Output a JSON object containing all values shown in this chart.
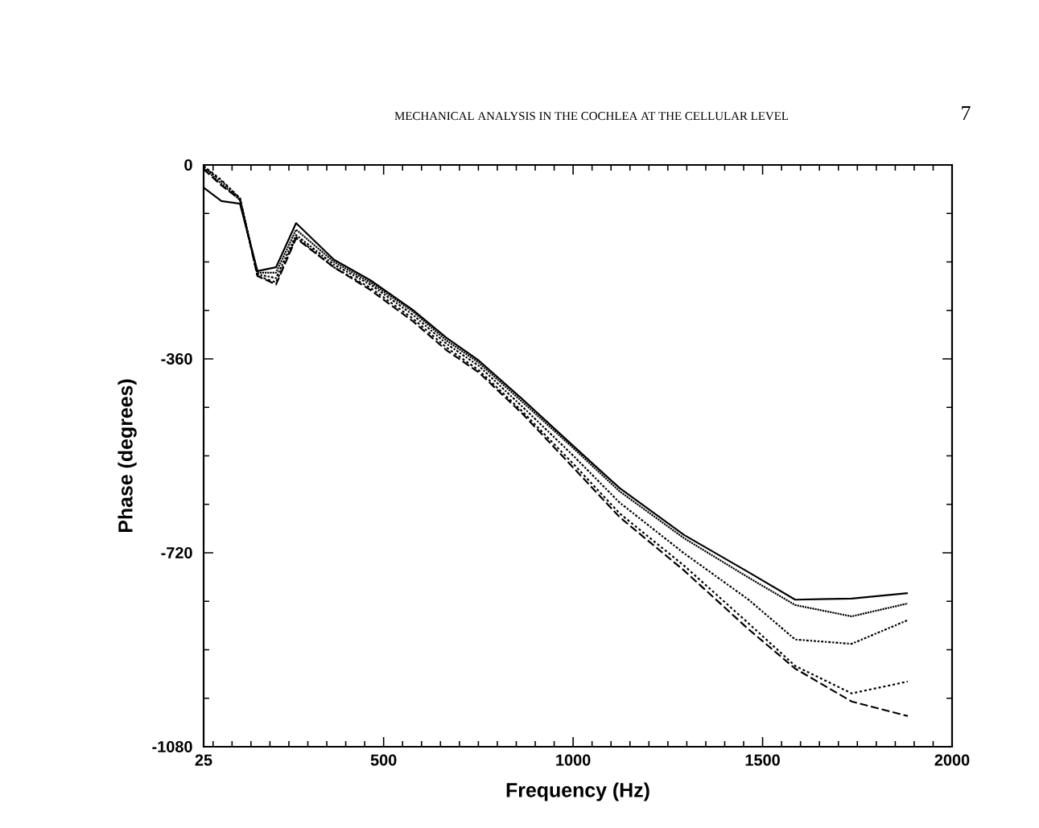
{
  "chart_data": {
    "type": "line",
    "xlabel": "Frequency (Hz)",
    "ylabel": "Phase (degrees)",
    "annotations": [
      "MECHANICAL ANALYSIS IN THE COCHLEA AT THE CELLULAR LEVEL",
      "7"
    ],
    "x": [
      25,
      72,
      121,
      167,
      216,
      269,
      369,
      465,
      577,
      666,
      751,
      868,
      998,
      1123,
      1293,
      1463,
      1586,
      1735,
      1883
    ],
    "series": [
      {
        "color": "#000000",
        "line_style": "solid",
        "values": [
          -42,
          -67,
          -72,
          -197,
          -190,
          -108,
          -176,
          -214,
          -269,
          -321,
          -363,
          -436,
          -520,
          -600,
          -687,
          -756,
          -807,
          -805,
          -795
        ]
      },
      {
        "color": "#000000",
        "line_style": "dotted",
        "values": [
          -5,
          -35,
          -65,
          -200,
          -200,
          -120,
          -180,
          -218,
          -272,
          -326,
          -367,
          -441,
          -524,
          -606,
          -693,
          -766,
          -817,
          -838,
          -814
        ]
      },
      {
        "color": "#000000",
        "line_style": "dashdotted",
        "values": [
          -3,
          -30,
          -62,
          -203,
          -210,
          -130,
          -185,
          -222,
          -278,
          -332,
          -373,
          -450,
          -538,
          -627,
          -721,
          -807,
          -881,
          -889,
          -845
        ]
      },
      {
        "color": "#000000",
        "line_style": "dashed",
        "values": [
          -2,
          -28,
          -62,
          -206,
          -218,
          -134,
          -190,
          -228,
          -285,
          -339,
          -381,
          -459,
          -553,
          -647,
          -744,
          -851,
          -930,
          -981,
          -959
        ]
      },
      {
        "color": "#000000",
        "line_style": "longdashed",
        "values": [
          -8,
          -38,
          -64,
          -206,
          -222,
          -136,
          -190,
          -232,
          -290,
          -344,
          -385,
          -463,
          -560,
          -654,
          -753,
          -862,
          -935,
          -996,
          -1023
        ]
      }
    ],
    "xlim": [
      25,
      2000
    ],
    "xticks": [
      25,
      {
        "value": 50,
        "label": null
      },
      {
        "value": 100,
        "label": null
      },
      {
        "value": 150,
        "label": null
      },
      {
        "value": 200,
        "label": null
      },
      {
        "value": 250,
        "label": null
      },
      {
        "value": 300,
        "label": null
      },
      {
        "value": 350,
        "label": null
      },
      {
        "value": 400,
        "label": null
      },
      {
        "value": 450,
        "label": null
      },
      500,
      {
        "value": 550,
        "label": null
      },
      {
        "value": 600,
        "label": null
      },
      {
        "value": 650,
        "label": null
      },
      {
        "value": 700,
        "label": null
      },
      {
        "value": 750,
        "label": null
      },
      {
        "value": 800,
        "label": null
      },
      {
        "value": 850,
        "label": null
      },
      {
        "value": 900,
        "label": null
      },
      {
        "value": 950,
        "label": null
      },
      1000,
      {
        "value": 1050,
        "label": null
      },
      {
        "value": 1100,
        "label": null
      },
      {
        "value": 1150,
        "label": null
      },
      {
        "value": 1200,
        "label": null
      },
      {
        "value": 1250,
        "label": null
      },
      {
        "value": 1300,
        "label": null
      },
      {
        "value": 1350,
        "label": null
      },
      {
        "value": 1400,
        "label": null
      },
      {
        "value": 1450,
        "label": null
      },
      1500,
      {
        "value": 1550,
        "label": null
      },
      {
        "value": 1600,
        "label": null
      },
      {
        "value": 1650,
        "label": null
      },
      {
        "value": 1700,
        "label": null
      },
      {
        "value": 1750,
        "label": null
      },
      {
        "value": 1800,
        "label": null
      },
      {
        "value": 1850,
        "label": null
      },
      {
        "value": 1900,
        "label": null
      },
      {
        "value": 1950,
        "label": null
      },
      2000
    ],
    "ylim": [
      -1080,
      0
    ],
    "yticks": [
      -1080,
      {
        "value": -990,
        "label": null
      },
      {
        "value": -900,
        "label": null
      },
      {
        "value": -810,
        "label": null
      },
      -720,
      {
        "value": -630,
        "label": null
      },
      {
        "value": -540,
        "label": null
      },
      {
        "value": -450,
        "label": null
      },
      -360,
      {
        "value": -270,
        "label": null
      },
      {
        "value": -180,
        "label": null
      },
      {
        "value": -90,
        "label": null
      },
      0
    ],
    "grid": false
  }
}
